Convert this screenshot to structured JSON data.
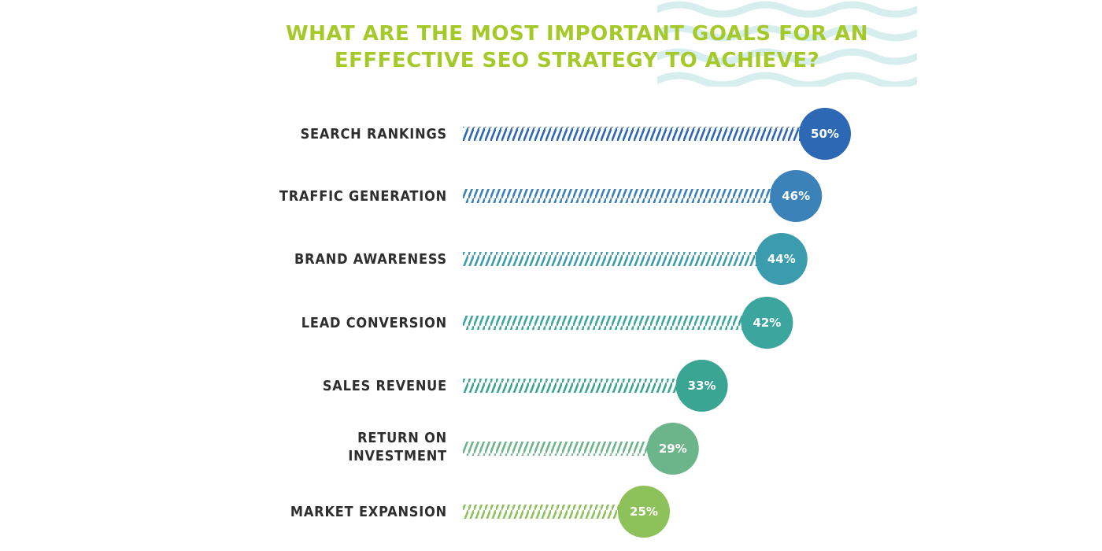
{
  "chart_data": {
    "type": "bar",
    "title_lines": [
      "WHAT ARE THE MOST IMPORTANT GOALS FOR AN",
      "EFFFECTIVE SEO STRATEGY TO ACHIEVE?"
    ],
    "categories": [
      "SEARCH RANKINGS",
      "TRAFFIC GENERATION",
      "BRAND AWARENESS",
      "LEAD CONVERSION",
      "SALES REVENUE",
      "RETURN ON INVESTMENT",
      "MARKET EXPANSION"
    ],
    "category_label_lines": [
      [
        "SEARCH RANKINGS"
      ],
      [
        "TRAFFIC GENERATION"
      ],
      [
        "BRAND AWARENESS"
      ],
      [
        "LEAD CONVERSION"
      ],
      [
        "SALES REVENUE"
      ],
      [
        "RETURN ON",
        "INVESTMENT"
      ],
      [
        "MARKET EXPANSION"
      ]
    ],
    "values": [
      50,
      46,
      44,
      42,
      33,
      29,
      25
    ],
    "value_labels": [
      "50%",
      "46%",
      "44%",
      "42%",
      "33%",
      "29%",
      "25%"
    ],
    "colors": [
      "#2d68b4",
      "#3b82b8",
      "#3b9cae",
      "#3aa69e",
      "#3aa592",
      "#6cb48a",
      "#8dc15a"
    ],
    "unit": "%",
    "orientation": "horizontal",
    "grid": false,
    "legend": "none"
  },
  "decor": {
    "title_color": "#a6c92a",
    "wave_color": "#d6efee"
  }
}
